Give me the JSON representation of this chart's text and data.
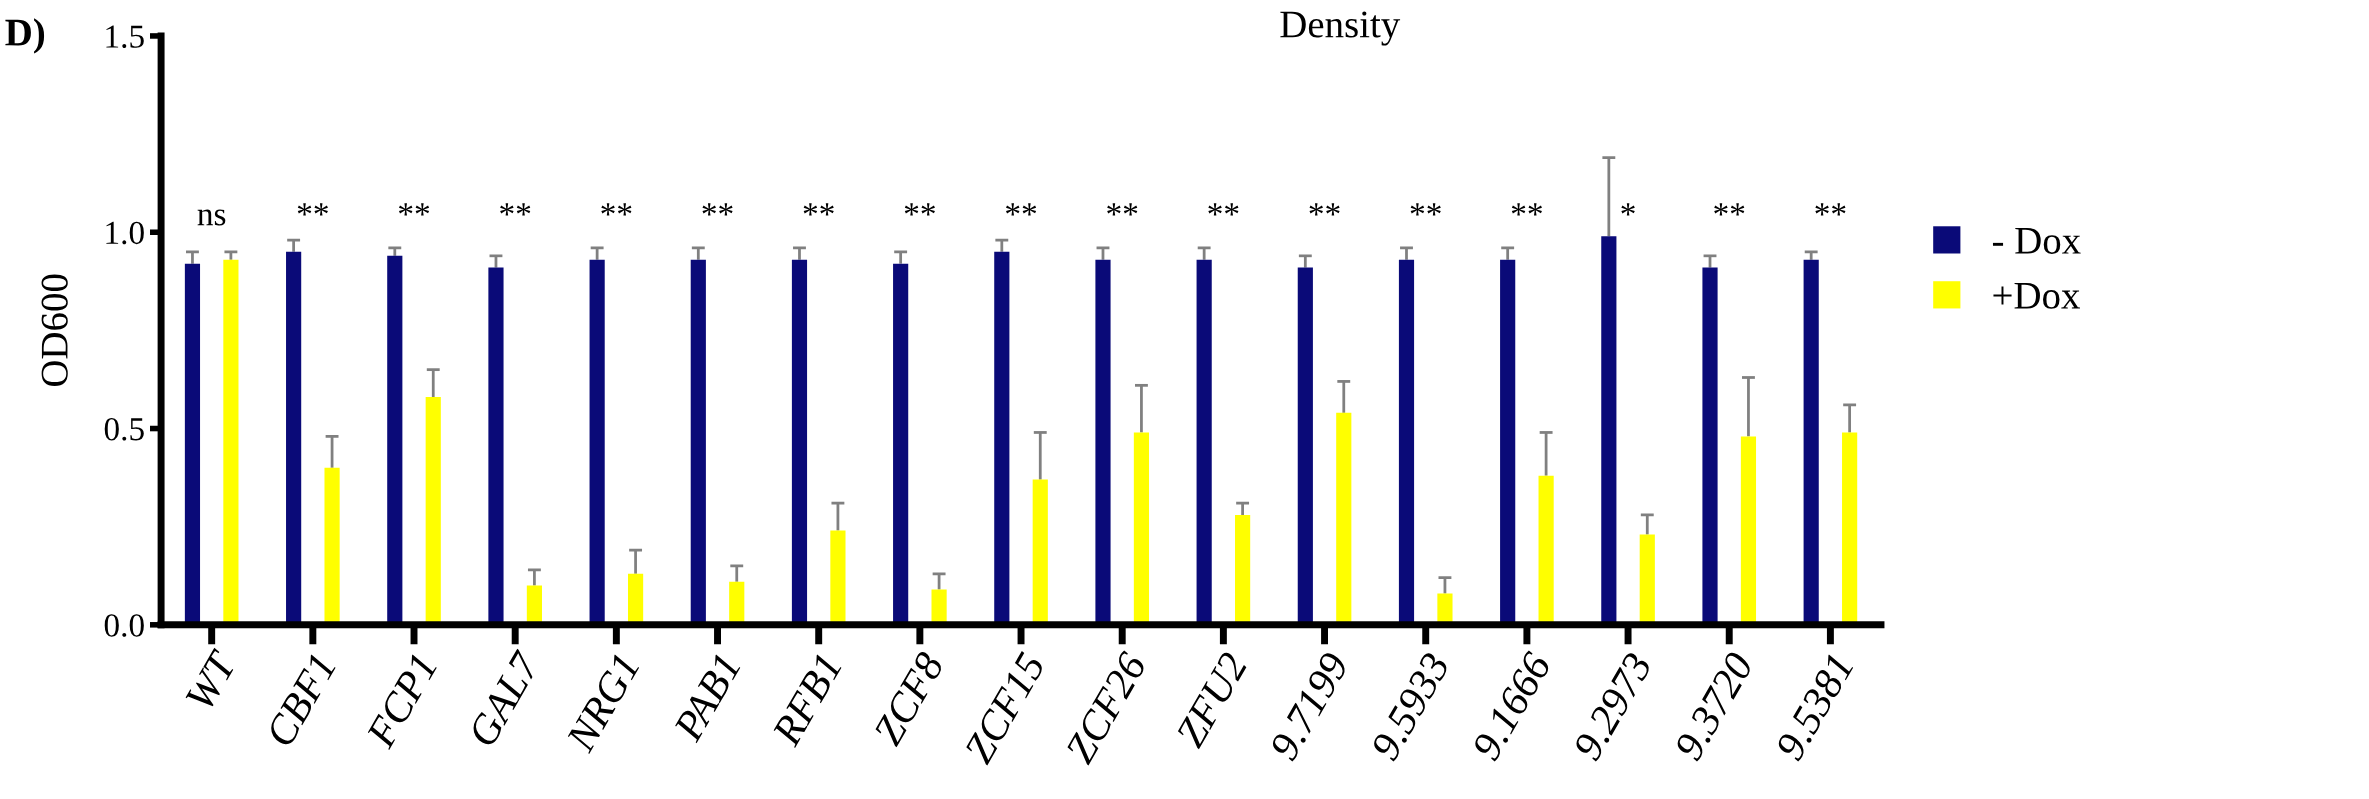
{
  "chart_data": {
    "type": "bar",
    "ylabel": "OD600",
    "categories": [
      "WT",
      "CBF1",
      "FCP1",
      "GAL7",
      "NRG1",
      "PAB1",
      "RFB1",
      "ZCF8",
      "ZCF15",
      "ZCF26",
      "ZFU2",
      "9.7199",
      "9.5933",
      "9.1666",
      "9.2973",
      "9.3720",
      "9.5381"
    ],
    "series": [
      {
        "name": "- Dox",
        "color": "#0a0a78",
        "values": [
          0.92,
          0.95,
          0.94,
          0.91,
          0.93,
          0.93,
          0.93,
          0.92,
          0.95,
          0.93,
          0.93,
          0.91,
          0.93,
          0.93,
          0.99,
          0.91,
          0.93
        ],
        "errors": [
          [
            0.92,
            0.95
          ],
          [
            0.95,
            0.98
          ],
          [
            0.94,
            0.96
          ],
          [
            0.91,
            0.94
          ],
          [
            0.93,
            0.96
          ],
          [
            0.93,
            0.96
          ],
          [
            0.93,
            0.96
          ],
          [
            0.92,
            0.95
          ],
          [
            0.95,
            0.98
          ],
          [
            0.93,
            0.96
          ],
          [
            0.93,
            0.96
          ],
          [
            0.91,
            0.94
          ],
          [
            0.93,
            0.96
          ],
          [
            0.93,
            0.96
          ],
          [
            0.99,
            1.19
          ],
          [
            0.91,
            0.94
          ],
          [
            0.93,
            0.95
          ]
        ]
      },
      {
        "name": "+Dox",
        "color": "#ffff00",
        "values": [
          0.93,
          0.4,
          0.58,
          0.1,
          0.13,
          0.11,
          0.24,
          0.09,
          0.37,
          0.49,
          0.28,
          0.54,
          0.08,
          0.38,
          0.23,
          0.48,
          0.49
        ],
        "errors": [
          [
            0.93,
            0.95
          ],
          [
            0.4,
            0.48
          ],
          [
            0.58,
            0.65
          ],
          [
            0.1,
            0.14
          ],
          [
            0.13,
            0.19
          ],
          [
            0.11,
            0.15
          ],
          [
            0.24,
            0.31
          ],
          [
            0.09,
            0.13
          ],
          [
            0.37,
            0.49
          ],
          [
            0.49,
            0.61
          ],
          [
            0.28,
            0.31
          ],
          [
            0.54,
            0.62
          ],
          [
            0.08,
            0.12
          ],
          [
            0.38,
            0.49
          ],
          [
            0.23,
            0.28
          ],
          [
            0.48,
            0.63
          ],
          [
            0.49,
            0.56
          ]
        ]
      }
    ],
    "ylim": [
      0,
      1.5
    ],
    "yticks": [
      {
        "value": 0,
        "label": "0.0"
      },
      {
        "value": 0.5,
        "label": "0.5"
      },
      {
        "value": 1.0,
        "label": "1.0"
      },
      {
        "value": 1.5,
        "label": "1.5"
      }
    ],
    "grid": false,
    "legend": "right",
    "annotations": [
      "D)",
      "Density",
      "ns",
      "**",
      "**",
      "**",
      "**",
      "**",
      "**",
      "**",
      "**",
      "**",
      "**",
      "**",
      "**",
      "**",
      "*",
      "**",
      "**"
    ]
  }
}
